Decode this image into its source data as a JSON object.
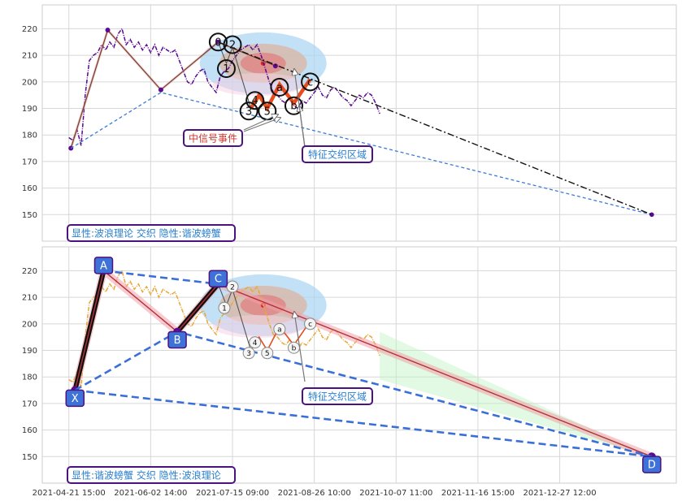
{
  "chart_data": [
    {
      "type": "line",
      "panel": "top",
      "ylim": [
        140,
        229
      ],
      "yticks": [
        150,
        160,
        170,
        180,
        190,
        200,
        210,
        220
      ],
      "grid": true,
      "series": [
        {
          "role": "price",
          "color": "#5b0a91",
          "style": "dash-dot",
          "points": [
            [
              0,
              179
            ],
            [
              2,
              178
            ],
            [
              4,
              182
            ],
            [
              6,
              176
            ],
            [
              8,
              195
            ],
            [
              10,
              208
            ],
            [
              12,
              210
            ],
            [
              14,
              211
            ],
            [
              16,
              214
            ],
            [
              18,
              212
            ],
            [
              20,
              215
            ],
            [
              22,
              213
            ],
            [
              24,
              218
            ],
            [
              26,
              220
            ],
            [
              28,
              214
            ],
            [
              30,
              216
            ],
            [
              32,
              213
            ],
            [
              34,
              215
            ],
            [
              36,
              212
            ],
            [
              38,
              214
            ],
            [
              40,
              211
            ],
            [
              42,
              214
            ],
            [
              44,
              210
            ],
            [
              46,
              213
            ],
            [
              48,
              212
            ],
            [
              50,
              211
            ],
            [
              52,
              212
            ],
            [
              54,
              208
            ],
            [
              56,
              204
            ],
            [
              58,
              200
            ],
            [
              60,
              199
            ],
            [
              62,
              202
            ],
            [
              64,
              204
            ],
            [
              66,
              205
            ],
            [
              68,
              200
            ],
            [
              70,
              198
            ],
            [
              72,
              196
            ],
            [
              74,
              202
            ],
            [
              76,
              204
            ],
            [
              78,
              205
            ],
            [
              80,
              208
            ],
            [
              82,
              210
            ],
            [
              84,
              212
            ],
            [
              86,
              213
            ],
            [
              88,
              214
            ],
            [
              90,
              212
            ],
            [
              92,
              214
            ],
            [
              94,
              210
            ],
            [
              96,
              205
            ],
            [
              98,
              200
            ],
            [
              100,
              196
            ],
            [
              102,
              195
            ],
            [
              104,
              193
            ],
            [
              106,
              192
            ],
            [
              108,
              194
            ],
            [
              110,
              191
            ],
            [
              112,
              190
            ],
            [
              114,
              193
            ],
            [
              116,
              192
            ],
            [
              118,
              194
            ],
            [
              120,
              196
            ],
            [
              122,
              198
            ],
            [
              124,
              195
            ],
            [
              126,
              194
            ],
            [
              128,
              197
            ],
            [
              130,
              198
            ],
            [
              132,
              196
            ],
            [
              134,
              194
            ],
            [
              136,
              193
            ],
            [
              138,
              191
            ],
            [
              140,
              193
            ],
            [
              142,
              195
            ],
            [
              144,
              194
            ],
            [
              146,
              196
            ],
            [
              148,
              195
            ],
            [
              150,
              192
            ],
            [
              152,
              188
            ]
          ]
        },
        {
          "role": "zigzag",
          "color": "#7a3a2e",
          "points": [
            [
              1,
              175
            ],
            [
              19,
              219.5
            ],
            [
              45,
              197
            ],
            [
              73,
              215
            ],
            [
              101,
              206
            ]
          ]
        },
        {
          "role": "trend-dash",
          "color": "#3a7bd5",
          "points": [
            [
              1,
              175
            ],
            [
              45,
              196
            ],
            [
              285,
              150
            ]
          ]
        },
        {
          "role": "trend-dashdot",
          "color": "#111111",
          "points": [
            [
              73,
              215
            ],
            [
              285,
              150
            ]
          ]
        },
        {
          "role": "wave-thin",
          "color": "#555555",
          "points": [
            [
              73,
              215
            ],
            [
              77,
              207
            ],
            [
              80,
              213
            ],
            [
              89,
              190
            ]
          ]
        },
        {
          "role": "wave-orange",
          "color": "#e84b1c",
          "points": [
            [
              89,
              190
            ],
            [
              93,
              195
            ],
            [
              97,
              190
            ],
            [
              103,
              199
            ],
            [
              110,
              192
            ],
            [
              118,
              201
            ]
          ]
        }
      ],
      "wave_labels": [
        {
          "label": "0",
          "x": 73,
          "y": 215
        },
        {
          "label": "1",
          "x": 77,
          "y": 205
        },
        {
          "label": "2",
          "x": 80,
          "y": 214
        },
        {
          "label": "3",
          "x": 88,
          "y": 189
        },
        {
          "label": "4",
          "x": 91,
          "y": 193
        },
        {
          "label": "5",
          "x": 97,
          "y": 189
        },
        {
          "label": "a",
          "x": 103,
          "y": 198
        },
        {
          "label": "b",
          "x": 110,
          "y": 191
        },
        {
          "label": "c",
          "x": 118,
          "y": 200
        }
      ],
      "zone": {
        "x": 95,
        "y": 207
      },
      "annotations": [
        {
          "text": "中信号事件",
          "color": "#d0342c"
        },
        {
          "text": "特征交织区域",
          "color": "#2a7fd0"
        }
      ],
      "caption": "显性:波浪理论 交织 隐性:谐波螃蟹"
    },
    {
      "type": "line",
      "panel": "bottom",
      "ylim": [
        140,
        229
      ],
      "yticks": [
        150,
        160,
        170,
        180,
        190,
        200,
        210,
        220
      ],
      "grid": true,
      "xtick_labels": [
        "2021-04-21 15:00",
        "2021-06-02 14:00",
        "2021-07-15 09:00",
        "2021-08-26 10:00",
        "2021-10-07 11:00",
        "2021-11-16 15:00",
        "2021-12-27 12:00"
      ],
      "xtick_positions": [
        0,
        40,
        80,
        120,
        160,
        200,
        240
      ],
      "xlim": [
        -13,
        297
      ],
      "series": [
        {
          "role": "price",
          "color": "#e8a838",
          "style": "dash-dot",
          "points": [
            [
              0,
              179
            ],
            [
              2,
              178
            ],
            [
              4,
              182
            ],
            [
              6,
              176
            ],
            [
              8,
              195
            ],
            [
              10,
              208
            ],
            [
              12,
              210
            ],
            [
              14,
              211
            ],
            [
              16,
              214
            ],
            [
              18,
              212
            ],
            [
              20,
              215
            ],
            [
              22,
              213
            ],
            [
              24,
              218
            ],
            [
              26,
              220
            ],
            [
              28,
              214
            ],
            [
              30,
              216
            ],
            [
              32,
              213
            ],
            [
              34,
              215
            ],
            [
              36,
              212
            ],
            [
              38,
              214
            ],
            [
              40,
              211
            ],
            [
              42,
              214
            ],
            [
              44,
              210
            ],
            [
              46,
              213
            ],
            [
              48,
              212
            ],
            [
              50,
              211
            ],
            [
              52,
              212
            ],
            [
              54,
              208
            ],
            [
              56,
              204
            ],
            [
              58,
              200
            ],
            [
              60,
              199
            ],
            [
              62,
              202
            ],
            [
              64,
              204
            ],
            [
              66,
              205
            ],
            [
              68,
              200
            ],
            [
              70,
              198
            ],
            [
              72,
              196
            ],
            [
              74,
              202
            ],
            [
              76,
              204
            ],
            [
              78,
              205
            ],
            [
              80,
              208
            ],
            [
              82,
              210
            ],
            [
              84,
              212
            ],
            [
              86,
              213
            ],
            [
              88,
              214
            ],
            [
              90,
              212
            ],
            [
              92,
              214
            ],
            [
              94,
              210
            ],
            [
              96,
              205
            ],
            [
              98,
              200
            ],
            [
              100,
              196
            ],
            [
              102,
              195
            ],
            [
              104,
              193
            ],
            [
              106,
              192
            ],
            [
              108,
              194
            ],
            [
              110,
              191
            ],
            [
              112,
              190
            ],
            [
              114,
              193
            ],
            [
              116,
              192
            ],
            [
              118,
              194
            ],
            [
              120,
              196
            ],
            [
              122,
              198
            ],
            [
              124,
              195
            ],
            [
              126,
              194
            ],
            [
              128,
              197
            ],
            [
              130,
              198
            ],
            [
              132,
              196
            ],
            [
              134,
              194
            ],
            [
              136,
              193
            ],
            [
              138,
              191
            ],
            [
              140,
              193
            ],
            [
              142,
              195
            ],
            [
              144,
              194
            ],
            [
              146,
              196
            ],
            [
              148,
              195
            ],
            [
              150,
              192
            ],
            [
              152,
              188
            ]
          ]
        },
        {
          "role": "xabcd",
          "color": "#111111",
          "points": [
            [
              3,
              175
            ],
            [
              17,
              220
            ],
            [
              53,
              197
            ],
            [
              73,
              215
            ],
            [
              285,
              150
            ]
          ]
        },
        {
          "role": "dash-blue",
          "color": "#3a6fd8",
          "points": [
            [
              3,
              175
            ],
            [
              53,
              197
            ],
            [
              285,
              150
            ]
          ]
        },
        {
          "role": "dash-blue-2",
          "color": "#3a6fd8",
          "points": [
            [
              3,
              175
            ],
            [
              285,
              150
            ]
          ]
        },
        {
          "role": "dash-blue-3",
          "color": "#3a6fd8",
          "points": [
            [
              17,
              220
            ],
            [
              73,
              215
            ]
          ]
        },
        {
          "role": "wave-thin",
          "color": "#555555",
          "points": [
            [
              73,
              215
            ],
            [
              77,
              207
            ],
            [
              80,
              213
            ],
            [
              89,
              190
            ]
          ]
        },
        {
          "role": "wave-orange",
          "color": "#e84b1c",
          "points": [
            [
              89,
              190
            ],
            [
              93,
              195
            ],
            [
              97,
              190
            ],
            [
              103,
              199
            ],
            [
              110,
              192
            ],
            [
              118,
              201
            ]
          ]
        }
      ],
      "xabcd_labels": [
        {
          "label": "X",
          "x": 3,
          "y": 172
        },
        {
          "label": "A",
          "x": 17,
          "y": 222
        },
        {
          "label": "B",
          "x": 53,
          "y": 194
        },
        {
          "label": "C",
          "x": 73,
          "y": 217
        },
        {
          "label": "D",
          "x": 285,
          "y": 147
        }
      ],
      "wave_labels": [
        {
          "label": "1",
          "x": 76,
          "y": 206
        },
        {
          "label": "2",
          "x": 80,
          "y": 214
        },
        {
          "label": "3",
          "x": 88,
          "y": 189
        },
        {
          "label": "4",
          "x": 91,
          "y": 193
        },
        {
          "label": "5",
          "x": 97,
          "y": 189
        },
        {
          "label": "a",
          "x": 103,
          "y": 198
        },
        {
          "label": "b",
          "x": 110,
          "y": 191
        },
        {
          "label": "c",
          "x": 118,
          "y": 200
        }
      ],
      "zone": {
        "x": 95,
        "y": 207
      },
      "annotations": [
        {
          "text": "特征交织区域",
          "color": "#2a7fd0"
        }
      ],
      "caption": "显性:谐波螃蟹 交织 隐性:波浪理论"
    }
  ]
}
